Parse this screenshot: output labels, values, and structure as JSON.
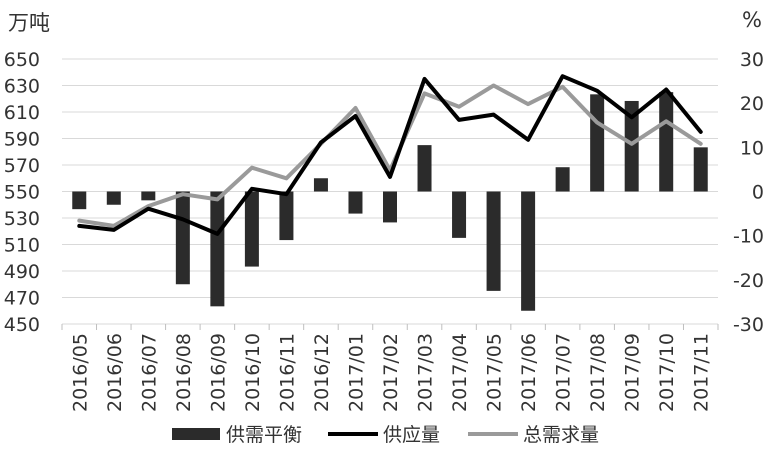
{
  "chart_data": {
    "type": "bar+line",
    "left_unit": "万吨",
    "right_unit": "%",
    "categories": [
      "2016/05",
      "2016/06",
      "2016/07",
      "2016/08",
      "2016/09",
      "2016/10",
      "2016/11",
      "2016/12",
      "2017/01",
      "2017/02",
      "2017/03",
      "2017/04",
      "2017/05",
      "2017/06",
      "2017/07",
      "2017/08",
      "2017/09",
      "2017/10",
      "2017/11"
    ],
    "left_axis": {
      "ylim": [
        450,
        650
      ],
      "ticks": [
        "450",
        "470",
        "490",
        "510",
        "530",
        "550",
        "570",
        "590",
        "610",
        "630",
        "650"
      ]
    },
    "right_axis": {
      "ylim": [
        -30,
        30
      ],
      "ticks": [
        "-30",
        "-20",
        "-10",
        "0",
        "10",
        "20",
        "30"
      ]
    },
    "grid": true,
    "legend_position": "bottom",
    "series": [
      {
        "name": "供需平衡",
        "kind": "bar",
        "axis": "right",
        "color": "#2b2b2b",
        "values": [
          -4,
          -3,
          -2,
          -21,
          -26,
          -17,
          -11,
          3,
          -5,
          -7,
          10.5,
          -10.5,
          -22.5,
          -27,
          5.5,
          22,
          20.5,
          22.5,
          10
        ]
      },
      {
        "name": "供应量",
        "kind": "line",
        "axis": "left",
        "color": "#000000",
        "values": [
          524,
          521,
          537,
          529,
          518,
          552,
          548,
          587,
          607,
          561,
          635,
          604,
          608,
          589,
          637,
          626,
          606,
          627,
          595
        ]
      },
      {
        "name": "总需求量",
        "kind": "line",
        "axis": "left",
        "color": "#9a9a9a",
        "values": [
          528,
          524,
          539,
          548,
          544,
          568,
          560,
          586,
          613,
          566,
          624,
          614,
          630,
          616,
          629,
          602,
          586,
          603,
          586
        ]
      }
    ]
  }
}
